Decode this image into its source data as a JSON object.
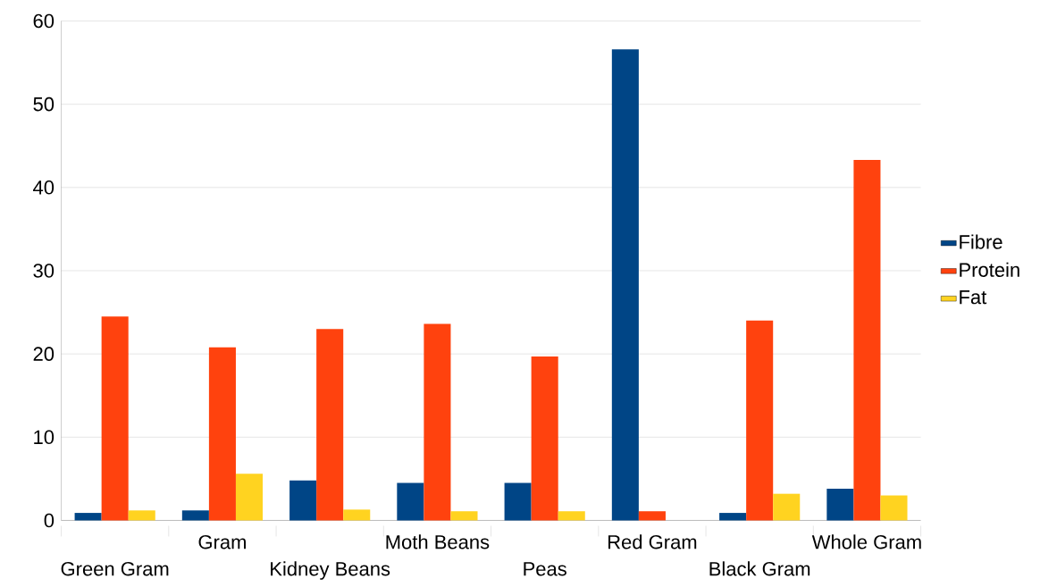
{
  "chart_data": {
    "type": "bar",
    "categories": [
      "Green Gram",
      "Gram",
      "Kidney Beans",
      "Moth Beans",
      "Peas",
      "Red Gram",
      "Black Gram",
      "Whole Gram"
    ],
    "series": [
      {
        "name": "Fibre",
        "color": "#004586",
        "values": [
          0.9,
          1.2,
          4.8,
          4.5,
          4.5,
          56.6,
          0.9,
          3.8
        ]
      },
      {
        "name": "Protein",
        "color": "#ff420e",
        "values": [
          24.5,
          20.8,
          23.0,
          23.6,
          19.7,
          1.1,
          24.0,
          43.3
        ]
      },
      {
        "name": "Fat",
        "color": "#ffd320",
        "values": [
          1.2,
          5.6,
          1.3,
          1.1,
          1.1,
          0,
          3.2,
          3.0
        ]
      }
    ],
    "ylim": [
      0,
      60
    ],
    "yticks": [
      0,
      10,
      20,
      30,
      40,
      50,
      60
    ],
    "grid": "y",
    "legend": "right"
  }
}
